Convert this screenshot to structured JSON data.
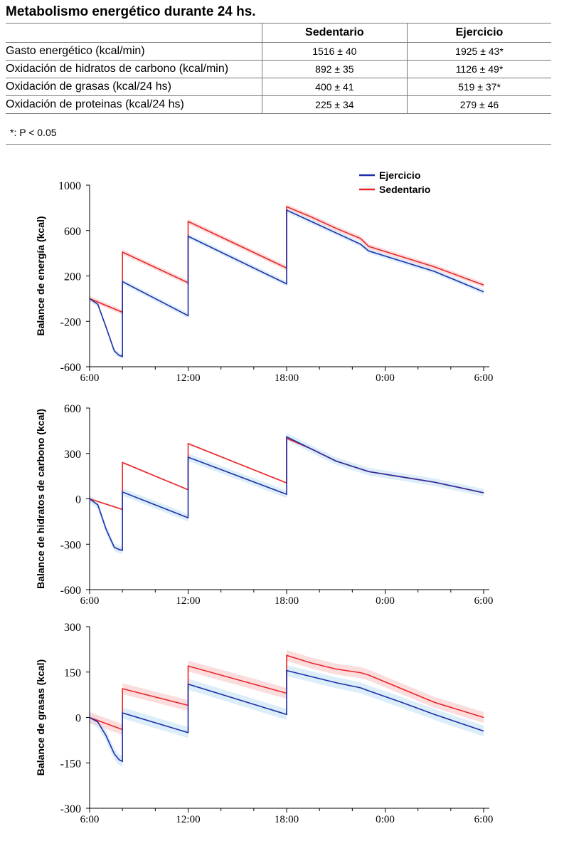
{
  "header": {
    "title": "Metabolismo energético durante 24 hs."
  },
  "table": {
    "columns": [
      "",
      "Sedentario",
      "Ejercicio"
    ],
    "rows": [
      {
        "label": "Gasto energético (kcal/min)",
        "sedentario": "1516 ± 40",
        "ejercicio": "1925 ± 43*"
      },
      {
        "label": "Oxidación de hidratos de carbono (kcal/min)",
        "sedentario": "892 ± 35",
        "ejercicio": "1126 ± 49*"
      },
      {
        "label": "Oxidación de grasas (kcal/24 hs)",
        "sedentario": "400 ± 41",
        "ejercicio": "519 ± 37*"
      },
      {
        "label": "Oxidación de proteinas (kcal/24 hs)",
        "sedentario": "225 ± 34",
        "ejercicio": "279 ± 46"
      }
    ],
    "footnote": "*: P < 0.05"
  },
  "colors": {
    "ejercicio": "#1f2fa8",
    "sedentario": "#e8262a",
    "ejercicio_band": "#cfe8f7",
    "sedentario_band": "#f9d2d2"
  },
  "chart_data": [
    {
      "type": "line",
      "ylabel": "Balance de energía (kcal)",
      "ylim": [
        -600,
        1000
      ],
      "yticks": [
        -600,
        -200,
        200,
        600,
        1000
      ],
      "xticks": [
        "6:00",
        "12:00",
        "18:00",
        "0:00",
        "6:00"
      ],
      "xlim": [
        6,
        30
      ],
      "legend": {
        "position": "top-right",
        "entries": [
          "Ejercicio",
          "Sedentario"
        ]
      },
      "series": [
        {
          "name": "Ejercicio",
          "band": 22,
          "x": [
            6,
            6.5,
            7,
            7.5,
            7.8,
            8,
            8,
            12,
            12,
            18,
            18,
            19.5,
            21,
            22.5,
            23,
            25,
            27,
            30
          ],
          "y": [
            0,
            -50,
            -250,
            -460,
            -500,
            -510,
            150,
            -150,
            550,
            130,
            780,
            680,
            580,
            480,
            420,
            330,
            240,
            60
          ]
        },
        {
          "name": "Sedentario",
          "band": 22,
          "x": [
            6,
            8,
            8,
            12,
            12,
            18,
            18,
            19.5,
            21,
            22.5,
            23,
            25,
            27,
            30
          ],
          "y": [
            0,
            -120,
            410,
            140,
            680,
            270,
            810,
            720,
            620,
            530,
            460,
            370,
            280,
            120
          ]
        }
      ]
    },
    {
      "type": "line",
      "ylabel": "Balance de hidratos de carbono (kcal)",
      "ylim": [
        -600,
        600
      ],
      "yticks": [
        -600,
        -300,
        0,
        300,
        600
      ],
      "xticks": [
        "6:00",
        "12:00",
        "18:00",
        "0:00",
        "6:00"
      ],
      "xlim": [
        6,
        30
      ],
      "series": [
        {
          "name": "Ejercicio",
          "band": 25,
          "x": [
            6,
            6.5,
            7,
            7.5,
            7.8,
            8,
            8,
            12,
            12,
            18,
            18,
            19.5,
            21,
            23,
            25,
            27,
            30
          ],
          "y": [
            0,
            -40,
            -200,
            -320,
            -335,
            -340,
            45,
            -125,
            275,
            30,
            410,
            330,
            250,
            180,
            145,
            110,
            40
          ]
        },
        {
          "name": "Sedentario",
          "band": 6,
          "x": [
            6,
            8,
            8,
            12,
            12,
            18,
            18,
            19.5,
            21,
            23,
            25,
            27,
            30
          ],
          "y": [
            0,
            -70,
            240,
            60,
            365,
            105,
            400,
            330,
            250,
            180,
            145,
            110,
            40
          ]
        }
      ]
    },
    {
      "type": "line",
      "ylabel": "Balance de grasas (kcal)",
      "ylim": [
        -300,
        300
      ],
      "yticks": [
        -300,
        -150,
        0,
        150,
        300
      ],
      "xticks": [
        "6:00",
        "12:00",
        "18:00",
        "0:00",
        "6:00"
      ],
      "xlim": [
        6,
        30
      ],
      "series": [
        {
          "name": "Ejercicio",
          "band": 18,
          "x": [
            6,
            6.5,
            7,
            7.5,
            7.8,
            8,
            8,
            12,
            12,
            18,
            18,
            19.5,
            21,
            22.5,
            23,
            25,
            27,
            30
          ],
          "y": [
            0,
            -15,
            -60,
            -120,
            -140,
            -145,
            15,
            -50,
            110,
            10,
            155,
            135,
            115,
            98,
            88,
            50,
            10,
            -45
          ]
        },
        {
          "name": "Sedentario",
          "band": 18,
          "x": [
            6,
            8,
            8,
            12,
            12,
            18,
            18,
            19.5,
            21,
            22.5,
            23,
            25,
            27,
            30
          ],
          "y": [
            0,
            -40,
            95,
            40,
            170,
            80,
            205,
            180,
            160,
            148,
            140,
            95,
            50,
            0
          ]
        }
      ]
    }
  ]
}
